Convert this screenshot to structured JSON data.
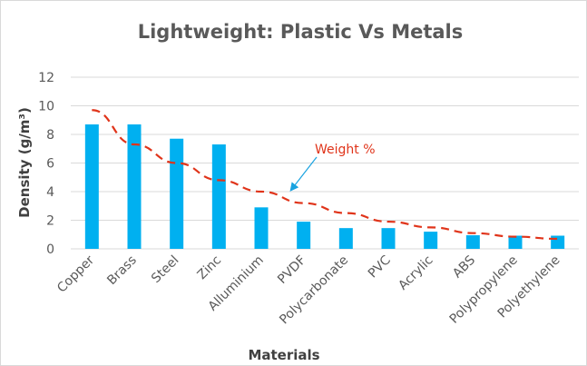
{
  "chart_data": {
    "type": "bar",
    "title": "Lightweight: Plastic Vs Metals",
    "xlabel": "Materials",
    "ylabel": "Density (g/m³)",
    "ylim": [
      0,
      12
    ],
    "yticks": [
      0,
      2,
      4,
      6,
      8,
      10,
      12
    ],
    "grid": true,
    "categories": [
      "Copper",
      "Brass",
      "Steel",
      "Zinc",
      "Alluminium",
      "PVDF",
      "Polycarbonate",
      "PVC",
      "Acrylic",
      "ABS",
      "Polypropylene",
      "Polyethylene"
    ],
    "series": [
      {
        "values": [
          8.7,
          8.7,
          7.7,
          7.3,
          2.9,
          1.9,
          1.45,
          1.45,
          1.2,
          0.95,
          0.92,
          0.92
        ],
        "color": "#00b0f0"
      }
    ],
    "trendline": {
      "label": "Weight %",
      "color": "#e0341a",
      "style": "dashed",
      "values": [
        9.7,
        7.3,
        6.0,
        4.8,
        4.0,
        3.2,
        2.5,
        1.9,
        1.5,
        1.1,
        0.85,
        0.7
      ]
    },
    "annotation_arrow_color": "#1aa3e0"
  }
}
